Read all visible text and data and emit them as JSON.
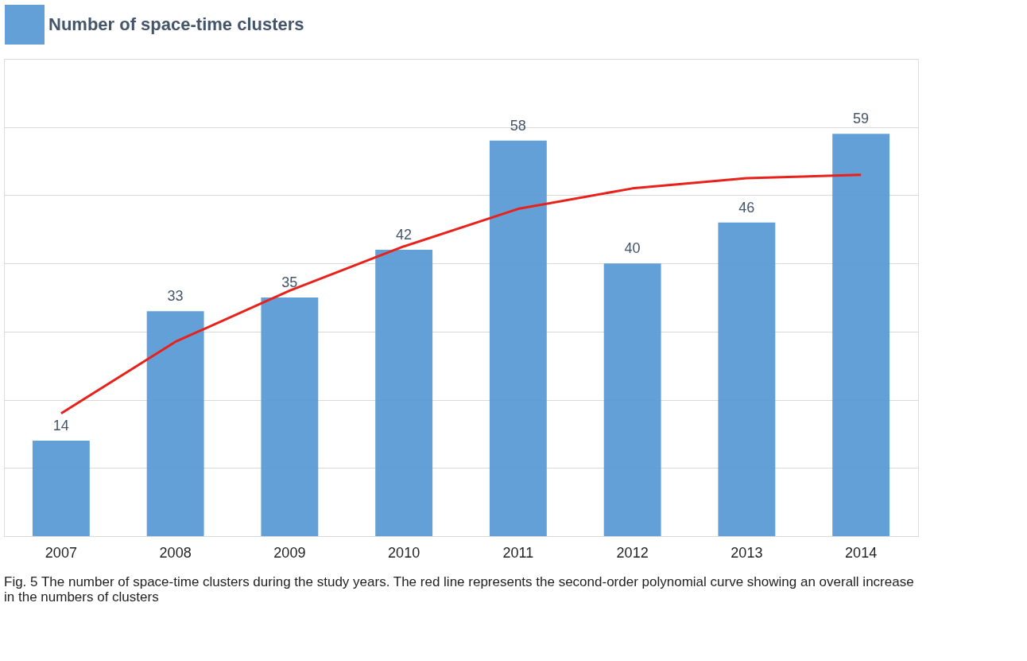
{
  "chart_data": {
    "type": "bar",
    "categories": [
      "2007",
      "2008",
      "2009",
      "2010",
      "2011",
      "2012",
      "2013",
      "2014"
    ],
    "series": [
      {
        "name": "Number of space-time clusters",
        "color": "#5b9bd5",
        "values": [
          14,
          33,
          35,
          42,
          58,
          40,
          46,
          59
        ],
        "value_labels": [
          "14",
          "33",
          "35",
          "42",
          "58",
          "40",
          "46",
          "59"
        ]
      },
      {
        "type": "line",
        "color": "#e8211b",
        "values": [
          18,
          28.5,
          36,
          42.5,
          48,
          51,
          52.5,
          53
        ]
      }
    ],
    "ylim": [
      0,
      70
    ],
    "yticks": [
      {
        "value": 0,
        "label": null
      },
      {
        "value": 10,
        "label": null
      },
      {
        "value": 20,
        "label": null
      },
      {
        "value": 30,
        "label": null
      },
      {
        "value": 40,
        "label": null
      },
      {
        "value": 50,
        "label": null
      },
      {
        "value": 60,
        "label": null
      },
      {
        "value": 70,
        "label": null
      }
    ],
    "tick_labels": "x",
    "grid": "y",
    "legend": "top",
    "annotations": [
      "Fig. 5 The number of space-time clusters during the study years. The red line represents the second-order polynomial curve showing an overall increase in the numbers of clusters"
    ]
  }
}
